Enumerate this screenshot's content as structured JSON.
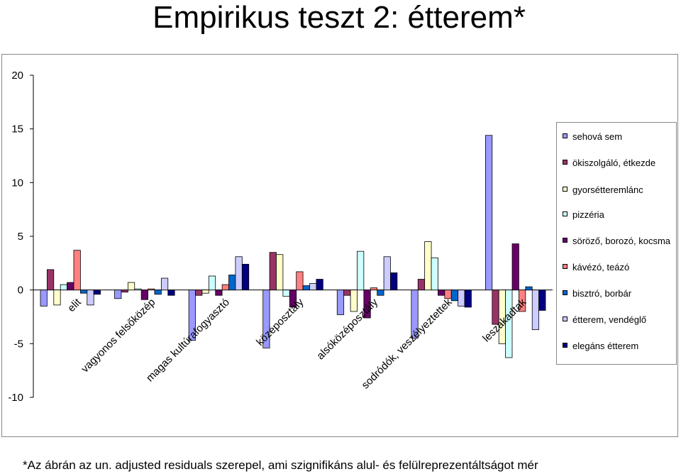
{
  "title": "Empirikus teszt 2: étterem*",
  "footnote": "*Az ábrán az un. adjusted residuals szerepel, ami szignifikáns alul- és felülreprezentáltságot mér",
  "chart_data": {
    "type": "bar",
    "ylim": [
      -10,
      20
    ],
    "yticks": [
      -10,
      -5,
      0,
      5,
      10,
      15,
      20
    ],
    "ytick_labels": [
      "-10",
      "-5",
      "0",
      "5",
      "10",
      "15",
      "20"
    ],
    "grid": false,
    "legend_position": "right",
    "categories": [
      "elit",
      "vagyonos felsőközép",
      "magas kultúrafogyasztó",
      "középosztály",
      "alsóközéposztály",
      "sodródók, veszélyeztettek",
      "leszakadtak"
    ],
    "series": [
      {
        "name": "sehová sem",
        "color": "#9999ff",
        "values": [
          -1.5,
          -0.8,
          -4.7,
          -5.4,
          -2.3,
          -4.5,
          14.4
        ]
      },
      {
        "name": "ökiszolgáló, étkezde",
        "color": "#993366",
        "values": [
          1.9,
          -0.2,
          -0.5,
          3.5,
          -0.5,
          1.0,
          -3.2
        ]
      },
      {
        "name": "gyorsétteremlánc",
        "color": "#ffffcc",
        "values": [
          -1.4,
          0.7,
          -0.3,
          3.3,
          -2.0,
          4.5,
          -5.0
        ]
      },
      {
        "name": "pizzéria",
        "color": "#ccffff",
        "values": [
          0.5,
          0.1,
          1.3,
          -0.6,
          3.6,
          3.0,
          -6.3
        ]
      },
      {
        "name": "söröző, borozó, kocsma",
        "color": "#660066",
        "values": [
          0.7,
          -0.9,
          -0.5,
          -1.6,
          -2.6,
          -0.5,
          4.3
        ]
      },
      {
        "name": "kávézó, teázó",
        "color": "#ff8080",
        "values": [
          3.7,
          0.1,
          0.5,
          1.7,
          0.2,
          -0.8,
          -2.0
        ]
      },
      {
        "name": "bisztró, borbár",
        "color": "#0066cc",
        "values": [
          -0.3,
          -0.4,
          1.4,
          0.4,
          -0.5,
          -1.0,
          0.3
        ]
      },
      {
        "name": "étterem, vendéglő",
        "color": "#ccccff",
        "values": [
          -1.4,
          1.1,
          3.1,
          0.6,
          3.1,
          -1.5,
          -3.7
        ]
      },
      {
        "name": "elegáns étterem",
        "color": "#000080",
        "values": [
          -0.4,
          -0.5,
          2.4,
          1.0,
          1.6,
          -1.6,
          -1.9
        ]
      }
    ]
  }
}
